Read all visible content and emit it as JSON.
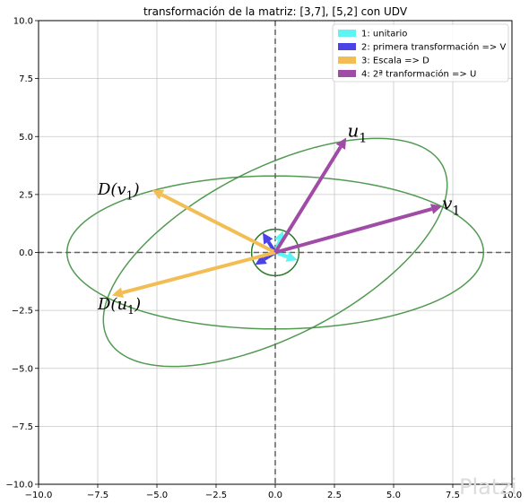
{
  "chart_data": {
    "type": "line",
    "title": "transformación de la matriz: [3,7], [5,2] con UDV",
    "xlim": [
      -10,
      10
    ],
    "ylim": [
      -10,
      10
    ],
    "xticks": [
      "−10.0",
      "−7.5",
      "−5.0",
      "−2.5",
      "0.0",
      "2.5",
      "5.0",
      "7.5",
      "10.0"
    ],
    "yticks": [
      "−10.0",
      "−7.5",
      "−5.0",
      "−2.5",
      "0.0",
      "2.5",
      "5.0",
      "7.5",
      "10.0"
    ],
    "xtick_values": [
      -10,
      -7.5,
      -5,
      -2.5,
      0,
      2.5,
      5,
      7.5,
      10
    ],
    "ytick_values": [
      -10,
      -7.5,
      -5,
      -2.5,
      0,
      2.5,
      5,
      7.5,
      10
    ],
    "grid": true,
    "legend_position": "top-right",
    "series": [
      {
        "name": "1: unitario",
        "color": "#5ff4f4",
        "vectors": [
          [
            [
              0,
              0
            ],
            [
              0.33,
              0.93
            ]
          ],
          [
            [
              0,
              0
            ],
            [
              0.93,
              -0.33
            ]
          ]
        ]
      },
      {
        "name": "2: primera transformación => V",
        "color": "#4b43e6",
        "vectors": [
          [
            [
              0,
              0
            ],
            [
              -0.53,
              0.85
            ]
          ],
          [
            [
              0,
              0
            ],
            [
              -0.85,
              -0.53
            ]
          ]
        ]
      },
      {
        "name": "3: Escala => D",
        "color": "#f2bd52",
        "vectors": [
          [
            [
              0,
              0
            ],
            [
              -5.2,
              2.7
            ]
          ],
          [
            [
              0,
              0
            ],
            [
              -6.9,
              -1.85
            ]
          ]
        ]
      },
      {
        "name": "4: 2ª tranformación => U",
        "color": "#a04ca6",
        "vectors": [
          [
            [
              0,
              0
            ],
            [
              3.0,
              4.95
            ]
          ],
          [
            [
              0,
              0
            ],
            [
              7.05,
              2.0
            ]
          ]
        ]
      }
    ],
    "ellipses": [
      {
        "color": "#3f8f3f",
        "center": [
          0,
          0
        ],
        "rx": 8.8,
        "ry": 3.3,
        "angle": 0
      },
      {
        "color": "#3f8f3f",
        "center": [
          0,
          0
        ],
        "rx": 8.0,
        "ry": 3.6,
        "angle": 28
      }
    ],
    "circles": [
      {
        "color": "#2a7a2a",
        "center": [
          0,
          0
        ],
        "r": 1
      }
    ],
    "annotations": [
      {
        "base": "u",
        "sub": "1",
        "x": 3.05,
        "y": 5.0,
        "size": 20
      },
      {
        "base": "v",
        "sub": "1",
        "x": 7.05,
        "y": 1.85,
        "size": 20
      },
      {
        "base": "D(v",
        "sub": "1",
        "suffix": ")",
        "x": -7.5,
        "y": 2.5,
        "size": 18
      },
      {
        "base": "D(u",
        "sub": "1",
        "suffix": ")",
        "x": -7.5,
        "y": -2.45,
        "size": 18
      }
    ]
  },
  "watermark": "Platzi"
}
